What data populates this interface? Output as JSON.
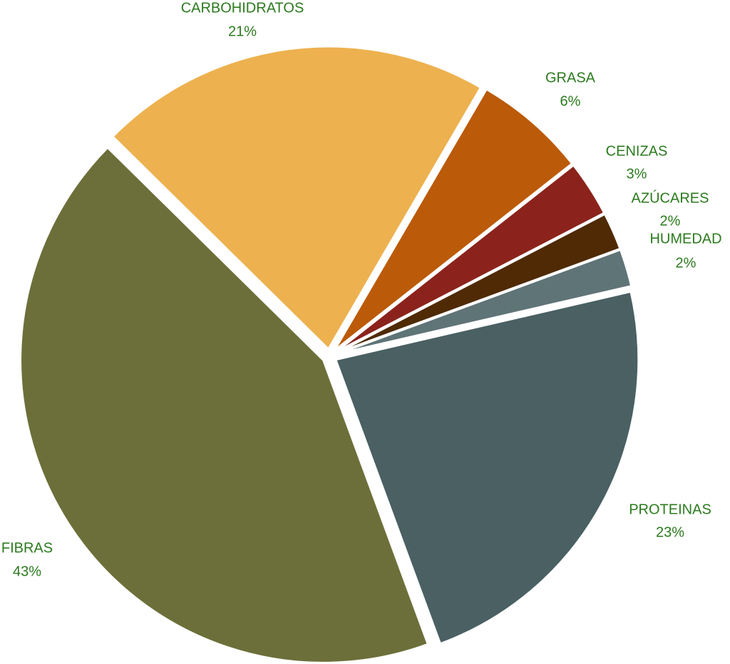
{
  "chart_data": {
    "type": "pie",
    "categories": [
      "PROTEINAS",
      "FIBRAS",
      "CARBOHIDRATOS",
      "GRASA",
      "CENIZAS",
      "AZÚCARES",
      "HUMEDAD"
    ],
    "values": [
      23,
      43,
      21,
      6,
      3,
      2,
      2
    ],
    "value_labels": [
      "23%",
      "43%",
      "21%",
      "6%",
      "3%",
      "2%",
      "2%"
    ],
    "colors": [
      "#4a6063",
      "#6d6f3a",
      "#edb14f",
      "#bb5a08",
      "#8b231c",
      "#4f2a05",
      "#5f7477"
    ]
  }
}
